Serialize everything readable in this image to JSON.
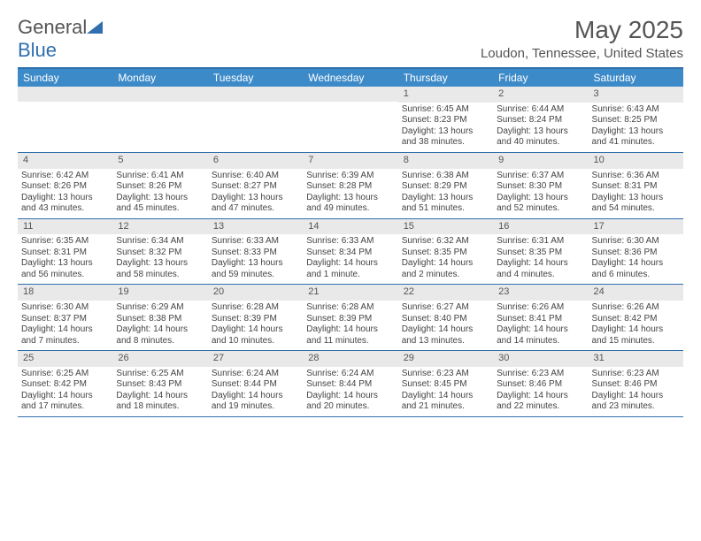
{
  "brand": {
    "name_gray": "General",
    "name_blue": "Blue"
  },
  "title": "May 2025",
  "location": "Loudon, Tennessee, United States",
  "colors": {
    "header_bar": "#3d8ac9",
    "border": "#2f6fae",
    "daynum_bg": "#e9e9e9",
    "text": "#555555"
  },
  "weekdays": [
    "Sunday",
    "Monday",
    "Tuesday",
    "Wednesday",
    "Thursday",
    "Friday",
    "Saturday"
  ],
  "weeks": [
    [
      null,
      null,
      null,
      null,
      {
        "n": "1",
        "sr": "Sunrise: 6:45 AM",
        "ss": "Sunset: 8:23 PM",
        "dl": "Daylight: 13 hours and 38 minutes."
      },
      {
        "n": "2",
        "sr": "Sunrise: 6:44 AM",
        "ss": "Sunset: 8:24 PM",
        "dl": "Daylight: 13 hours and 40 minutes."
      },
      {
        "n": "3",
        "sr": "Sunrise: 6:43 AM",
        "ss": "Sunset: 8:25 PM",
        "dl": "Daylight: 13 hours and 41 minutes."
      }
    ],
    [
      {
        "n": "4",
        "sr": "Sunrise: 6:42 AM",
        "ss": "Sunset: 8:26 PM",
        "dl": "Daylight: 13 hours and 43 minutes."
      },
      {
        "n": "5",
        "sr": "Sunrise: 6:41 AM",
        "ss": "Sunset: 8:26 PM",
        "dl": "Daylight: 13 hours and 45 minutes."
      },
      {
        "n": "6",
        "sr": "Sunrise: 6:40 AM",
        "ss": "Sunset: 8:27 PM",
        "dl": "Daylight: 13 hours and 47 minutes."
      },
      {
        "n": "7",
        "sr": "Sunrise: 6:39 AM",
        "ss": "Sunset: 8:28 PM",
        "dl": "Daylight: 13 hours and 49 minutes."
      },
      {
        "n": "8",
        "sr": "Sunrise: 6:38 AM",
        "ss": "Sunset: 8:29 PM",
        "dl": "Daylight: 13 hours and 51 minutes."
      },
      {
        "n": "9",
        "sr": "Sunrise: 6:37 AM",
        "ss": "Sunset: 8:30 PM",
        "dl": "Daylight: 13 hours and 52 minutes."
      },
      {
        "n": "10",
        "sr": "Sunrise: 6:36 AM",
        "ss": "Sunset: 8:31 PM",
        "dl": "Daylight: 13 hours and 54 minutes."
      }
    ],
    [
      {
        "n": "11",
        "sr": "Sunrise: 6:35 AM",
        "ss": "Sunset: 8:31 PM",
        "dl": "Daylight: 13 hours and 56 minutes."
      },
      {
        "n": "12",
        "sr": "Sunrise: 6:34 AM",
        "ss": "Sunset: 8:32 PM",
        "dl": "Daylight: 13 hours and 58 minutes."
      },
      {
        "n": "13",
        "sr": "Sunrise: 6:33 AM",
        "ss": "Sunset: 8:33 PM",
        "dl": "Daylight: 13 hours and 59 minutes."
      },
      {
        "n": "14",
        "sr": "Sunrise: 6:33 AM",
        "ss": "Sunset: 8:34 PM",
        "dl": "Daylight: 14 hours and 1 minute."
      },
      {
        "n": "15",
        "sr": "Sunrise: 6:32 AM",
        "ss": "Sunset: 8:35 PM",
        "dl": "Daylight: 14 hours and 2 minutes."
      },
      {
        "n": "16",
        "sr": "Sunrise: 6:31 AM",
        "ss": "Sunset: 8:35 PM",
        "dl": "Daylight: 14 hours and 4 minutes."
      },
      {
        "n": "17",
        "sr": "Sunrise: 6:30 AM",
        "ss": "Sunset: 8:36 PM",
        "dl": "Daylight: 14 hours and 6 minutes."
      }
    ],
    [
      {
        "n": "18",
        "sr": "Sunrise: 6:30 AM",
        "ss": "Sunset: 8:37 PM",
        "dl": "Daylight: 14 hours and 7 minutes."
      },
      {
        "n": "19",
        "sr": "Sunrise: 6:29 AM",
        "ss": "Sunset: 8:38 PM",
        "dl": "Daylight: 14 hours and 8 minutes."
      },
      {
        "n": "20",
        "sr": "Sunrise: 6:28 AM",
        "ss": "Sunset: 8:39 PM",
        "dl": "Daylight: 14 hours and 10 minutes."
      },
      {
        "n": "21",
        "sr": "Sunrise: 6:28 AM",
        "ss": "Sunset: 8:39 PM",
        "dl": "Daylight: 14 hours and 11 minutes."
      },
      {
        "n": "22",
        "sr": "Sunrise: 6:27 AM",
        "ss": "Sunset: 8:40 PM",
        "dl": "Daylight: 14 hours and 13 minutes."
      },
      {
        "n": "23",
        "sr": "Sunrise: 6:26 AM",
        "ss": "Sunset: 8:41 PM",
        "dl": "Daylight: 14 hours and 14 minutes."
      },
      {
        "n": "24",
        "sr": "Sunrise: 6:26 AM",
        "ss": "Sunset: 8:42 PM",
        "dl": "Daylight: 14 hours and 15 minutes."
      }
    ],
    [
      {
        "n": "25",
        "sr": "Sunrise: 6:25 AM",
        "ss": "Sunset: 8:42 PM",
        "dl": "Daylight: 14 hours and 17 minutes."
      },
      {
        "n": "26",
        "sr": "Sunrise: 6:25 AM",
        "ss": "Sunset: 8:43 PM",
        "dl": "Daylight: 14 hours and 18 minutes."
      },
      {
        "n": "27",
        "sr": "Sunrise: 6:24 AM",
        "ss": "Sunset: 8:44 PM",
        "dl": "Daylight: 14 hours and 19 minutes."
      },
      {
        "n": "28",
        "sr": "Sunrise: 6:24 AM",
        "ss": "Sunset: 8:44 PM",
        "dl": "Daylight: 14 hours and 20 minutes."
      },
      {
        "n": "29",
        "sr": "Sunrise: 6:23 AM",
        "ss": "Sunset: 8:45 PM",
        "dl": "Daylight: 14 hours and 21 minutes."
      },
      {
        "n": "30",
        "sr": "Sunrise: 6:23 AM",
        "ss": "Sunset: 8:46 PM",
        "dl": "Daylight: 14 hours and 22 minutes."
      },
      {
        "n": "31",
        "sr": "Sunrise: 6:23 AM",
        "ss": "Sunset: 8:46 PM",
        "dl": "Daylight: 14 hours and 23 minutes."
      }
    ]
  ]
}
